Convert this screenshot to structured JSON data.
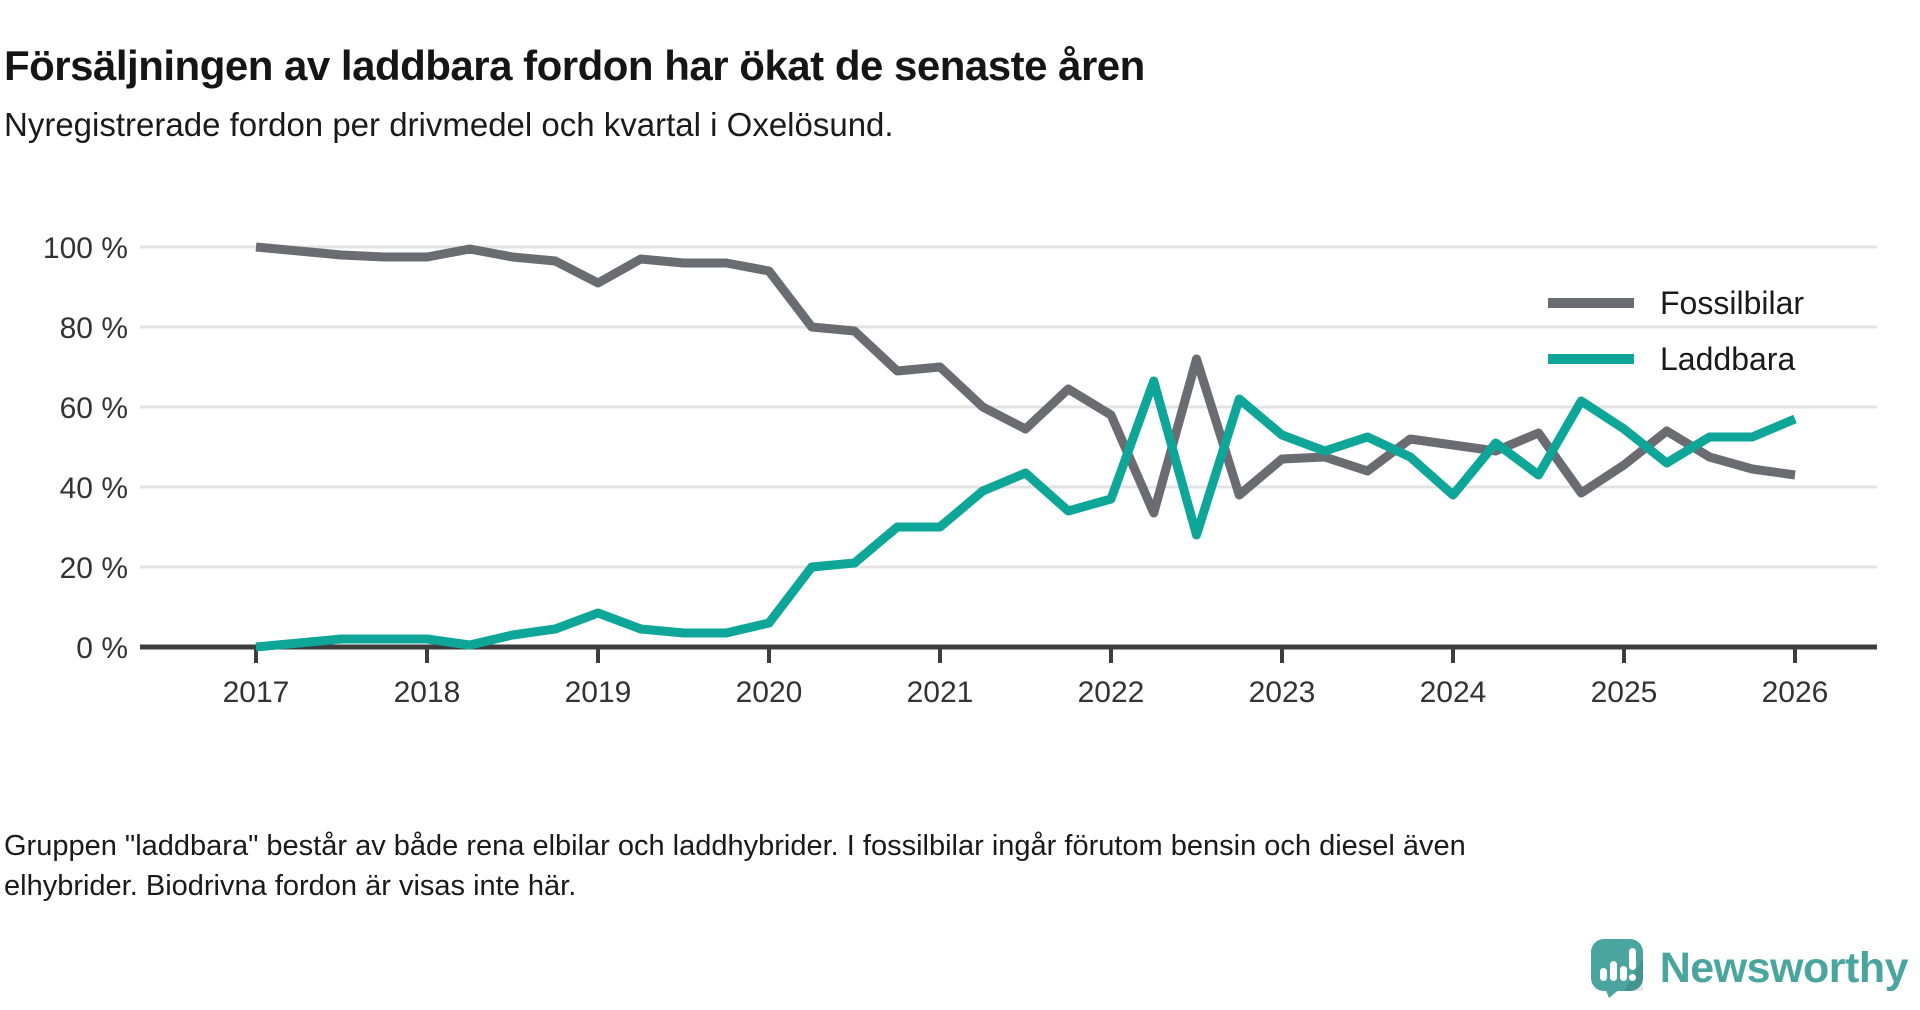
{
  "title": "Försäljningen av laddbara fordon har ökat de senaste åren",
  "subtitle": "Nyregistrerade fordon per drivmedel och kvartal i Oxelösund.",
  "footer": "Gruppen \"laddbara\" består av både rena elbilar och laddhybrider. I fossilbilar ingår förutom bensin och diesel även elhybrider. Biodrivna fordon är visas inte här.",
  "logo": {
    "text": "Newsworthy",
    "color": "#4aa59e"
  },
  "colors": {
    "fossil": "#6b6b72",
    "laddbara": "#0da698",
    "grid": "#e3e3e3",
    "axis": "#3d3d3d",
    "tick_label": "#333333"
  },
  "chart_data": {
    "type": "line",
    "title": "Försäljningen av laddbara fordon har ökat de senaste åren",
    "subtitle": "Nyregistrerade fordon per drivmedel och kvartal i Oxelösund.",
    "x_start": 2017,
    "x_step": 0.25,
    "x_tick_labels": [
      "2017",
      "2018",
      "2019",
      "2020",
      "2021",
      "2022",
      "2023",
      "2024",
      "2025",
      "2026"
    ],
    "y_ticks": [
      0,
      20,
      40,
      60,
      80,
      100
    ],
    "y_tick_suffix": " %",
    "ylim": [
      0,
      100
    ],
    "grid": true,
    "legend_position": "top-right",
    "series": [
      {
        "name": "Fossilbilar",
        "color": "#6b6b72",
        "values": [
          100,
          99,
          98,
          97.5,
          97.5,
          99.5,
          97.5,
          96.5,
          91,
          97,
          96,
          96,
          94,
          80,
          79,
          69,
          70,
          60,
          54.5,
          64.5,
          58,
          33.5,
          72,
          38,
          47,
          47.5,
          44,
          52,
          50.5,
          49,
          53.5,
          38.5,
          45.5,
          54,
          47.5,
          44.5,
          43
        ]
      },
      {
        "name": "Laddbara",
        "color": "#0da698",
        "values": [
          0,
          1,
          2,
          2,
          2,
          0.5,
          3,
          4.5,
          8.5,
          4.5,
          3.5,
          3.5,
          6,
          20,
          21,
          30,
          30,
          39,
          43.5,
          34,
          37,
          66.5,
          28,
          62,
          53,
          49,
          52.5,
          47.5,
          38,
          51,
          43,
          61.5,
          54.5,
          46,
          52.5,
          52.5,
          57
        ]
      }
    ]
  }
}
